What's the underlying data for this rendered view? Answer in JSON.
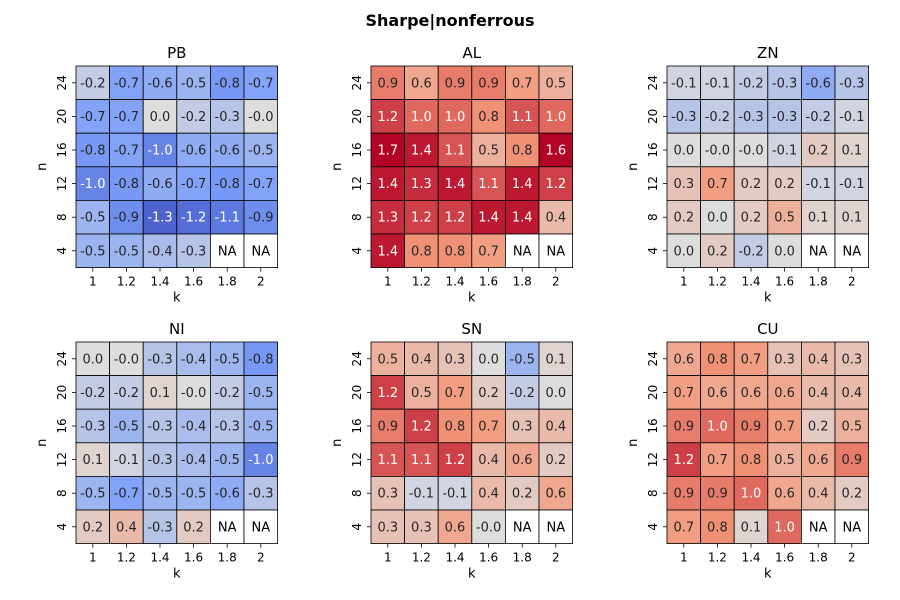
{
  "figure": {
    "title": "Sharpe|nonferrous"
  },
  "chart_data": [
    {
      "type": "heatmap",
      "title": "PB",
      "xlabel": "k",
      "ylabel": "n",
      "x_ticks": [
        "1",
        "1.2",
        "1.4",
        "1.6",
        "1.8",
        "2"
      ],
      "y_ticks": [
        "24",
        "20",
        "16",
        "12",
        "8",
        "4"
      ],
      "values": [
        [
          -0.2,
          -0.7,
          -0.6,
          -0.5,
          -0.8,
          -0.7
        ],
        [
          -0.7,
          -0.7,
          0.0,
          -0.2,
          -0.3,
          -0.0
        ],
        [
          -0.8,
          -0.7,
          -1.0,
          -0.6,
          -0.6,
          -0.5
        ],
        [
          -1.0,
          -0.8,
          -0.6,
          -0.7,
          -0.8,
          -0.7
        ],
        [
          -0.5,
          -0.9,
          -1.3,
          -1.2,
          -1.1,
          -0.9
        ],
        [
          -0.5,
          -0.5,
          -0.4,
          -0.3,
          null,
          null
        ]
      ],
      "labels": [
        [
          "-0.2",
          "-0.7",
          "-0.6",
          "-0.5",
          "-0.8",
          "-0.7"
        ],
        [
          "-0.7",
          "-0.7",
          "0.0",
          "-0.2",
          "-0.3",
          "-0.0"
        ],
        [
          "-0.8",
          "-0.7",
          "-1.0",
          "-0.6",
          "-0.6",
          "-0.5"
        ],
        [
          "-1.0",
          "-0.8",
          "-0.6",
          "-0.7",
          "-0.8",
          "-0.7"
        ],
        [
          "-0.5",
          "-0.9",
          "-1.3",
          "-1.2",
          "-1.1",
          "-0.9"
        ],
        [
          "-0.5",
          "-0.5",
          "-0.4",
          "-0.3",
          "NA",
          "NA"
        ]
      ]
    },
    {
      "type": "heatmap",
      "title": "AL",
      "xlabel": "k",
      "ylabel": "n",
      "x_ticks": [
        "1",
        "1.2",
        "1.4",
        "1.6",
        "1.8",
        "2"
      ],
      "y_ticks": [
        "24",
        "20",
        "16",
        "12",
        "8",
        "4"
      ],
      "values": [
        [
          0.9,
          0.6,
          0.9,
          0.9,
          0.7,
          0.5
        ],
        [
          1.2,
          1.0,
          1.0,
          0.8,
          1.1,
          1.0
        ],
        [
          1.7,
          1.4,
          1.1,
          0.5,
          0.8,
          1.6
        ],
        [
          1.4,
          1.3,
          1.4,
          1.1,
          1.4,
          1.2
        ],
        [
          1.3,
          1.2,
          1.2,
          1.4,
          1.4,
          0.4
        ],
        [
          1.4,
          0.8,
          0.8,
          0.7,
          null,
          null
        ]
      ],
      "labels": [
        [
          "0.9",
          "0.6",
          "0.9",
          "0.9",
          "0.7",
          "0.5"
        ],
        [
          "1.2",
          "1.0",
          "1.0",
          "0.8",
          "1.1",
          "1.0"
        ],
        [
          "1.7",
          "1.4",
          "1.1",
          "0.5",
          "0.8",
          "1.6"
        ],
        [
          "1.4",
          "1.3",
          "1.4",
          "1.1",
          "1.4",
          "1.2"
        ],
        [
          "1.3",
          "1.2",
          "1.2",
          "1.4",
          "1.4",
          "0.4"
        ],
        [
          "1.4",
          "0.8",
          "0.8",
          "0.7",
          "NA",
          "NA"
        ]
      ]
    },
    {
      "type": "heatmap",
      "title": "ZN",
      "xlabel": "k",
      "ylabel": "n",
      "x_ticks": [
        "1",
        "1.2",
        "1.4",
        "1.6",
        "1.8",
        "2"
      ],
      "y_ticks": [
        "24",
        "20",
        "16",
        "12",
        "8",
        "4"
      ],
      "values": [
        [
          -0.1,
          -0.1,
          -0.2,
          -0.3,
          -0.6,
          -0.3
        ],
        [
          -0.3,
          -0.2,
          -0.3,
          -0.3,
          -0.2,
          -0.1
        ],
        [
          0.0,
          -0.0,
          -0.0,
          -0.1,
          0.2,
          0.1
        ],
        [
          0.3,
          0.7,
          0.2,
          0.2,
          -0.1,
          -0.1
        ],
        [
          0.2,
          0.0,
          0.2,
          0.5,
          0.1,
          0.1
        ],
        [
          0.0,
          0.2,
          -0.2,
          0.0,
          null,
          null
        ]
      ],
      "labels": [
        [
          "-0.1",
          "-0.1",
          "-0.2",
          "-0.3",
          "-0.6",
          "-0.3"
        ],
        [
          "-0.3",
          "-0.2",
          "-0.3",
          "-0.3",
          "-0.2",
          "-0.1"
        ],
        [
          "0.0",
          "-0.0",
          "-0.0",
          "-0.1",
          "0.2",
          "0.1"
        ],
        [
          "0.3",
          "0.7",
          "0.2",
          "0.2",
          "-0.1",
          "-0.1"
        ],
        [
          "0.2",
          "0.0",
          "0.2",
          "0.5",
          "0.1",
          "0.1"
        ],
        [
          "0.0",
          "0.2",
          "-0.2",
          "0.0",
          "NA",
          "NA"
        ]
      ]
    },
    {
      "type": "heatmap",
      "title": "NI",
      "xlabel": "k",
      "ylabel": "n",
      "x_ticks": [
        "1",
        "1.2",
        "1.4",
        "1.6",
        "1.8",
        "2"
      ],
      "y_ticks": [
        "24",
        "20",
        "16",
        "12",
        "8",
        "4"
      ],
      "values": [
        [
          0.0,
          -0.0,
          -0.3,
          -0.4,
          -0.5,
          -0.8
        ],
        [
          -0.2,
          -0.2,
          0.1,
          -0.0,
          -0.2,
          -0.5
        ],
        [
          -0.3,
          -0.5,
          -0.3,
          -0.4,
          -0.3,
          -0.5
        ],
        [
          0.1,
          -0.1,
          -0.3,
          -0.4,
          -0.5,
          -1.0
        ],
        [
          -0.5,
          -0.7,
          -0.5,
          -0.5,
          -0.6,
          -0.3
        ],
        [
          0.2,
          0.4,
          -0.3,
          0.2,
          null,
          null
        ]
      ],
      "labels": [
        [
          "0.0",
          "-0.0",
          "-0.3",
          "-0.4",
          "-0.5",
          "-0.8"
        ],
        [
          "-0.2",
          "-0.2",
          "0.1",
          "-0.0",
          "-0.2",
          "-0.5"
        ],
        [
          "-0.3",
          "-0.5",
          "-0.3",
          "-0.4",
          "-0.3",
          "-0.5"
        ],
        [
          "0.1",
          "-0.1",
          "-0.3",
          "-0.4",
          "-0.5",
          "-1.0"
        ],
        [
          "-0.5",
          "-0.7",
          "-0.5",
          "-0.5",
          "-0.6",
          "-0.3"
        ],
        [
          "0.2",
          "0.4",
          "-0.3",
          "0.2",
          "NA",
          "NA"
        ]
      ]
    },
    {
      "type": "heatmap",
      "title": "SN",
      "xlabel": "k",
      "ylabel": "n",
      "x_ticks": [
        "1",
        "1.2",
        "1.4",
        "1.6",
        "1.8",
        "2"
      ],
      "y_ticks": [
        "24",
        "20",
        "16",
        "12",
        "8",
        "4"
      ],
      "values": [
        [
          0.5,
          0.4,
          0.3,
          0.0,
          -0.5,
          0.1
        ],
        [
          1.2,
          0.5,
          0.7,
          0.2,
          -0.2,
          0.0
        ],
        [
          0.9,
          1.2,
          0.8,
          0.7,
          0.3,
          0.4
        ],
        [
          1.1,
          1.1,
          1.2,
          0.4,
          0.6,
          0.2
        ],
        [
          0.3,
          -0.1,
          -0.1,
          0.4,
          0.2,
          0.6
        ],
        [
          0.3,
          0.3,
          0.6,
          -0.0,
          null,
          null
        ]
      ],
      "labels": [
        [
          "0.5",
          "0.4",
          "0.3",
          "0.0",
          "-0.5",
          "0.1"
        ],
        [
          "1.2",
          "0.5",
          "0.7",
          "0.2",
          "-0.2",
          "0.0"
        ],
        [
          "0.9",
          "1.2",
          "0.8",
          "0.7",
          "0.3",
          "0.4"
        ],
        [
          "1.1",
          "1.1",
          "1.2",
          "0.4",
          "0.6",
          "0.2"
        ],
        [
          "0.3",
          "-0.1",
          "-0.1",
          "0.4",
          "0.2",
          "0.6"
        ],
        [
          "0.3",
          "0.3",
          "0.6",
          "-0.0",
          "NA",
          "NA"
        ]
      ]
    },
    {
      "type": "heatmap",
      "title": "CU",
      "xlabel": "k",
      "ylabel": "n",
      "x_ticks": [
        "1",
        "1.2",
        "1.4",
        "1.6",
        "1.8",
        "2"
      ],
      "y_ticks": [
        "24",
        "20",
        "16",
        "12",
        "8",
        "4"
      ],
      "values": [
        [
          0.6,
          0.8,
          0.7,
          0.3,
          0.4,
          0.3
        ],
        [
          0.7,
          0.6,
          0.6,
          0.6,
          0.4,
          0.4
        ],
        [
          0.9,
          1.0,
          0.9,
          0.7,
          0.2,
          0.5
        ],
        [
          1.2,
          0.7,
          0.8,
          0.5,
          0.6,
          0.9
        ],
        [
          0.9,
          0.9,
          1.0,
          0.6,
          0.4,
          0.2
        ],
        [
          0.7,
          0.8,
          0.1,
          1.0,
          null,
          null
        ]
      ],
      "labels": [
        [
          "0.6",
          "0.8",
          "0.7",
          "0.3",
          "0.4",
          "0.3"
        ],
        [
          "0.7",
          "0.6",
          "0.6",
          "0.6",
          "0.4",
          "0.4"
        ],
        [
          "0.9",
          "1.0",
          "0.9",
          "0.7",
          "0.2",
          "0.5"
        ],
        [
          "1.2",
          "0.7",
          "0.8",
          "0.5",
          "0.6",
          "0.9"
        ],
        [
          "0.9",
          "0.9",
          "1.0",
          "0.6",
          "0.4",
          "0.2"
        ],
        [
          "0.7",
          "0.8",
          "0.1",
          "1.0",
          "NA",
          "NA"
        ]
      ]
    }
  ],
  "colormap": "coolwarm",
  "color_range": [
    -1.5,
    1.5
  ],
  "na_color": "#ffffff",
  "grid_line_color": "#000000"
}
